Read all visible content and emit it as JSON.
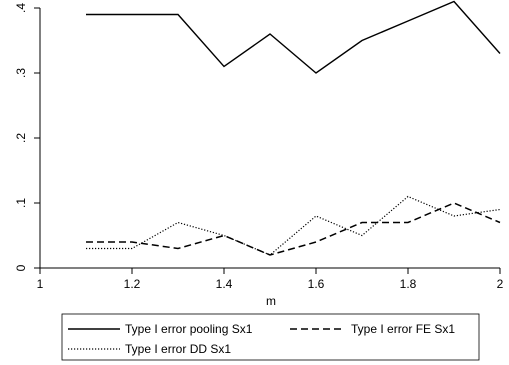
{
  "chart_data": {
    "type": "line",
    "title": "",
    "xlabel": "m",
    "ylabel": "",
    "xlim": [
      1,
      2
    ],
    "ylim": [
      0,
      0.4
    ],
    "x_ticks": [
      {
        "value": 1,
        "label": "1"
      },
      {
        "value": 1.2,
        "label": "1.2"
      },
      {
        "value": 1.4,
        "label": "1.4"
      },
      {
        "value": 1.6,
        "label": "1.6"
      },
      {
        "value": 1.8,
        "label": "1.8"
      },
      {
        "value": 2,
        "label": "2"
      }
    ],
    "y_ticks": [
      {
        "value": 0,
        "label": "0"
      },
      {
        "value": 0.1,
        "label": ".1"
      },
      {
        "value": 0.2,
        "label": ".2"
      },
      {
        "value": 0.3,
        "label": ".3"
      },
      {
        "value": 0.4,
        "label": ".4"
      }
    ],
    "grid": false,
    "legend_position": "bottom",
    "x": [
      1.1,
      1.2,
      1.3,
      1.4,
      1.5,
      1.6,
      1.7,
      1.8,
      1.9,
      2.0
    ],
    "series": [
      {
        "name": "Type I error pooling Sx1",
        "style": "solid",
        "color": "#000000",
        "values": [
          0.39,
          0.39,
          0.39,
          0.31,
          0.36,
          0.3,
          0.35,
          0.38,
          0.41,
          0.33
        ]
      },
      {
        "name": "Type I error FE Sx1",
        "style": "dashed",
        "color": "#000000",
        "values": [
          0.04,
          0.04,
          0.03,
          0.05,
          0.02,
          0.04,
          0.07,
          0.07,
          0.1,
          0.07
        ]
      },
      {
        "name": "Type I error DD Sx1",
        "style": "dotted",
        "color": "#000000",
        "values": [
          0.03,
          0.03,
          0.07,
          0.05,
          0.02,
          0.08,
          0.05,
          0.11,
          0.08,
          0.09
        ]
      }
    ]
  }
}
